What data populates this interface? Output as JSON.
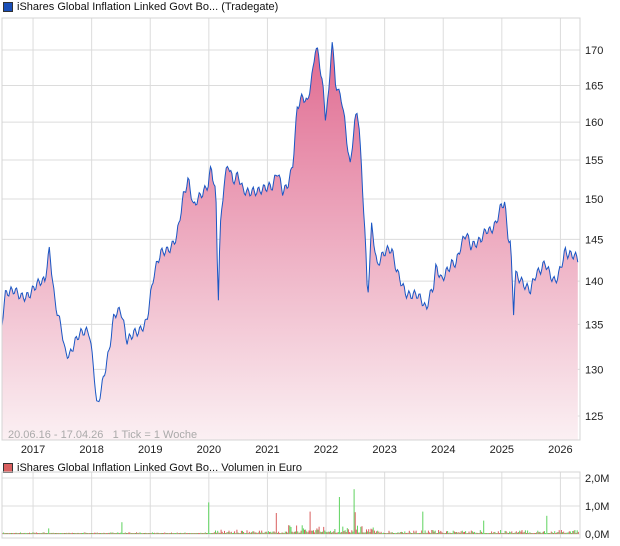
{
  "price_legend": {
    "label": "iShares Global Inflation Linked Govt Bo... (Tradegate)",
    "color": "#1a4fb8"
  },
  "volume_legend": {
    "label": "iShares Global Inflation Linked Govt Bo... Volumen in Euro",
    "color": "#d95f5f"
  },
  "info_text": "20.06.16 - 17.04.26   1 Tick = 1 Woche",
  "chart_data": [
    {
      "type": "area",
      "title": "iShares Global Inflation Linked Govt Bo... (Tradegate)",
      "yscale": "log",
      "ylim": [
        122,
        174
      ],
      "xlim": [
        2016.47,
        2026.3
      ],
      "y_ticks": [
        125,
        130,
        135,
        140,
        145,
        150,
        155,
        160,
        165,
        170
      ],
      "x_ticks": [
        "2017",
        "2018",
        "2019",
        "2020",
        "2021",
        "2022",
        "2023",
        "2024",
        "2025",
        "2026"
      ],
      "line_color": "#1a56c4",
      "fill_top": "#e06a90",
      "fill_bottom": "#fbf0f3",
      "series": [
        [
          2016.47,
          134.2
        ],
        [
          2016.52,
          137.6
        ],
        [
          2016.69,
          139.3
        ],
        [
          2016.94,
          138.7
        ],
        [
          2017.2,
          139.3
        ],
        [
          2017.28,
          143.6
        ],
        [
          2017.37,
          138.2
        ],
        [
          2017.49,
          135.3
        ],
        [
          2017.54,
          132.6
        ],
        [
          2017.62,
          131.5
        ],
        [
          2017.79,
          133.1
        ],
        [
          2017.96,
          134.2
        ],
        [
          2018.04,
          130.4
        ],
        [
          2018.09,
          126.6
        ],
        [
          2018.21,
          129.8
        ],
        [
          2018.3,
          132.0
        ],
        [
          2018.38,
          135.3
        ],
        [
          2018.5,
          135.9
        ],
        [
          2018.6,
          133.1
        ],
        [
          2018.72,
          134.8
        ],
        [
          2018.94,
          135.3
        ],
        [
          2019.06,
          139.9
        ],
        [
          2019.18,
          142.8
        ],
        [
          2019.31,
          144.1
        ],
        [
          2019.45,
          146.2
        ],
        [
          2019.57,
          150.7
        ],
        [
          2019.65,
          151.9
        ],
        [
          2019.74,
          148.1
        ],
        [
          2019.9,
          150.7
        ],
        [
          2019.99,
          152.5
        ],
        [
          2020.04,
          155.1
        ],
        [
          2020.12,
          151.3
        ],
        [
          2020.16,
          138.2
        ],
        [
          2020.19,
          146.2
        ],
        [
          2020.26,
          151.9
        ],
        [
          2020.33,
          153.8
        ],
        [
          2020.41,
          151.3
        ],
        [
          2020.5,
          152.5
        ],
        [
          2020.58,
          151.3
        ],
        [
          2020.75,
          151.9
        ],
        [
          2020.92,
          151.0
        ],
        [
          2021.0,
          150.7
        ],
        [
          2021.09,
          150.7
        ],
        [
          2021.17,
          153.2
        ],
        [
          2021.26,
          151.3
        ],
        [
          2021.34,
          152.5
        ],
        [
          2021.43,
          155.1
        ],
        [
          2021.51,
          162.4
        ],
        [
          2021.6,
          163.0
        ],
        [
          2021.68,
          161.6
        ],
        [
          2021.77,
          165.8
        ],
        [
          2021.82,
          170.0
        ],
        [
          2021.87,
          169.3
        ],
        [
          2021.94,
          165.8
        ],
        [
          2021.99,
          161.6
        ],
        [
          2022.05,
          165.1
        ],
        [
          2022.1,
          172.6
        ],
        [
          2022.16,
          165.8
        ],
        [
          2022.22,
          163.7
        ],
        [
          2022.27,
          162.4
        ],
        [
          2022.36,
          156.4
        ],
        [
          2022.41,
          153.2
        ],
        [
          2022.48,
          159.0
        ],
        [
          2022.53,
          161.6
        ],
        [
          2022.56,
          160.3
        ],
        [
          2022.61,
          153.8
        ],
        [
          2022.66,
          147.4
        ],
        [
          2022.71,
          138.7
        ],
        [
          2022.78,
          147.4
        ],
        [
          2022.87,
          141.6
        ],
        [
          2022.95,
          142.2
        ],
        [
          2023.03,
          142.8
        ],
        [
          2023.12,
          143.3
        ],
        [
          2023.2,
          141.6
        ],
        [
          2023.29,
          140.5
        ],
        [
          2023.37,
          139.3
        ],
        [
          2023.46,
          138.7
        ],
        [
          2023.54,
          138.2
        ],
        [
          2023.63,
          137.0
        ],
        [
          2023.71,
          135.9
        ],
        [
          2023.76,
          137.6
        ],
        [
          2023.83,
          139.3
        ],
        [
          2023.88,
          142.2
        ],
        [
          2023.97,
          141.0
        ],
        [
          2024.05,
          141.8
        ],
        [
          2024.14,
          142.2
        ],
        [
          2024.22,
          141.6
        ],
        [
          2024.3,
          143.3
        ],
        [
          2024.39,
          145.1
        ],
        [
          2024.47,
          144.1
        ],
        [
          2024.56,
          145.1
        ],
        [
          2024.73,
          146.8
        ],
        [
          2024.81,
          146.0
        ],
        [
          2024.9,
          146.2
        ],
        [
          2024.98,
          148.1
        ],
        [
          2025.05,
          148.9
        ],
        [
          2025.1,
          145.3
        ],
        [
          2025.15,
          144.5
        ],
        [
          2025.2,
          136.9
        ],
        [
          2025.23,
          141.6
        ],
        [
          2025.32,
          141.0
        ],
        [
          2025.4,
          139.9
        ],
        [
          2025.49,
          138.7
        ],
        [
          2025.57,
          139.9
        ],
        [
          2025.66,
          140.5
        ],
        [
          2025.74,
          141.8
        ],
        [
          2025.83,
          141.0
        ],
        [
          2025.91,
          140.7
        ],
        [
          2026.0,
          142.2
        ],
        [
          2026.08,
          143.9
        ],
        [
          2026.13,
          143.0
        ],
        [
          2026.3,
          141.8
        ]
      ]
    },
    {
      "type": "bar",
      "title": "iShares Global Inflation Linked Govt Bo... Volumen in Euro",
      "ylim": [
        0,
        2.0
      ],
      "y_unit": "M",
      "y_ticks": [
        "0,0M",
        "1,0M",
        "2,0M"
      ],
      "up_color": "#5fd35f",
      "down_color": "#d95f5f",
      "base_level": 0.05,
      "notable_bars": [
        [
          2017.25,
          0.2,
          "up"
        ],
        [
          2018.5,
          0.42,
          "up"
        ],
        [
          2019.99,
          1.13,
          "up"
        ],
        [
          2021.15,
          0.75,
          "down"
        ],
        [
          2021.72,
          0.8,
          "down"
        ],
        [
          2022.22,
          1.32,
          "up"
        ],
        [
          2022.47,
          1.6,
          "up"
        ],
        [
          2022.48,
          0.78,
          "down"
        ],
        [
          2023.65,
          0.8,
          "up"
        ],
        [
          2024.68,
          0.48,
          "up"
        ],
        [
          2025.75,
          0.65,
          "up"
        ]
      ]
    }
  ]
}
